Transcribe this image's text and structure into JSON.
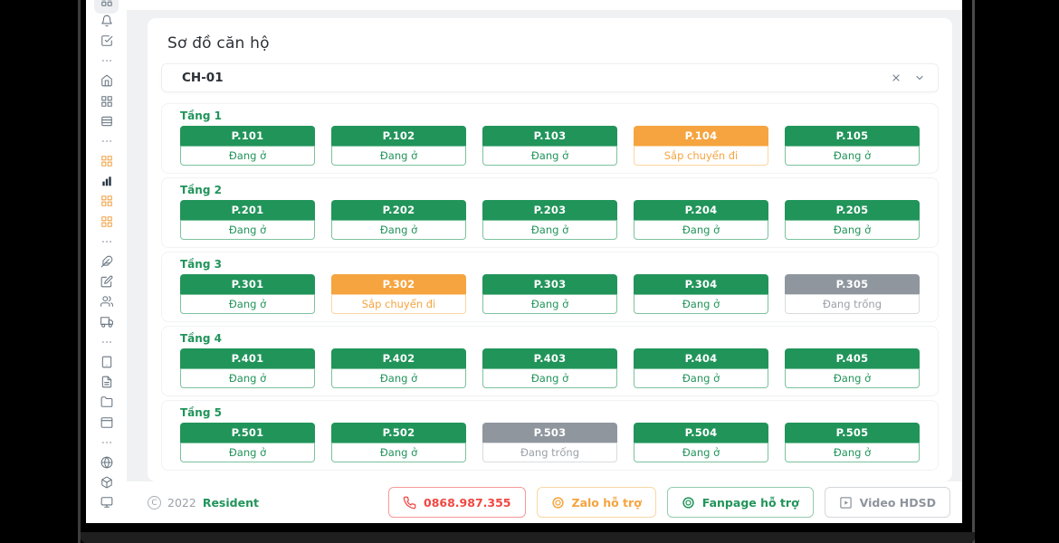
{
  "page": {
    "title": "Sơ đồ căn hộ",
    "apartment_select": {
      "value": "CH-01",
      "clear_icon": "x",
      "dropdown_icon": "chevron-down"
    },
    "floors": [
      {
        "label": "Tầng 1",
        "units": [
          {
            "name": "P.101",
            "status": "Đang ở",
            "state": "occupied"
          },
          {
            "name": "P.102",
            "status": "Đang ở",
            "state": "occupied"
          },
          {
            "name": "P.103",
            "status": "Đang ở",
            "state": "occupied"
          },
          {
            "name": "P.104",
            "status": "Sắp chuyển đi",
            "state": "leaving"
          },
          {
            "name": "P.105",
            "status": "Đang ở",
            "state": "occupied"
          }
        ]
      },
      {
        "label": "Tầng 2",
        "units": [
          {
            "name": "P.201",
            "status": "Đang ở",
            "state": "occupied"
          },
          {
            "name": "P.202",
            "status": "Đang ở",
            "state": "occupied"
          },
          {
            "name": "P.203",
            "status": "Đang ở",
            "state": "occupied"
          },
          {
            "name": "P.204",
            "status": "Đang ở",
            "state": "occupied"
          },
          {
            "name": "P.205",
            "status": "Đang ở",
            "state": "occupied"
          }
        ]
      },
      {
        "label": "Tầng 3",
        "units": [
          {
            "name": "P.301",
            "status": "Đang ở",
            "state": "occupied"
          },
          {
            "name": "P.302",
            "status": "Sắp chuyển đi",
            "state": "leaving"
          },
          {
            "name": "P.303",
            "status": "Đang ở",
            "state": "occupied"
          },
          {
            "name": "P.304",
            "status": "Đang ở",
            "state": "occupied"
          },
          {
            "name": "P.305",
            "status": "Đang trống",
            "state": "vacant"
          }
        ]
      },
      {
        "label": "Tầng 4",
        "units": [
          {
            "name": "P.401",
            "status": "Đang ở",
            "state": "occupied"
          },
          {
            "name": "P.402",
            "status": "Đang ở",
            "state": "occupied"
          },
          {
            "name": "P.403",
            "status": "Đang ở",
            "state": "occupied"
          },
          {
            "name": "P.404",
            "status": "Đang ở",
            "state": "occupied"
          },
          {
            "name": "P.405",
            "status": "Đang ở",
            "state": "occupied"
          }
        ]
      },
      {
        "label": "Tầng 5",
        "units": [
          {
            "name": "P.501",
            "status": "Đang ở",
            "state": "occupied"
          },
          {
            "name": "P.502",
            "status": "Đang ở",
            "state": "occupied"
          },
          {
            "name": "P.503",
            "status": "Đang trống",
            "state": "vacant"
          },
          {
            "name": "P.504",
            "status": "Đang ở",
            "state": "occupied"
          },
          {
            "name": "P.505",
            "status": "Đang ở",
            "state": "occupied"
          }
        ]
      }
    ]
  },
  "sidebar": {
    "icons": [
      {
        "name": "layout-grid",
        "tone": "default",
        "active": true
      },
      {
        "name": "bell",
        "tone": "default"
      },
      {
        "name": "check-square",
        "tone": "default"
      },
      {
        "name": "ellipsis",
        "tone": "muted"
      },
      {
        "name": "home",
        "tone": "default"
      },
      {
        "name": "grid",
        "tone": "default"
      },
      {
        "name": "rows",
        "tone": "default"
      },
      {
        "name": "ellipsis",
        "tone": "muted"
      },
      {
        "name": "grid",
        "tone": "orange"
      },
      {
        "name": "bar-chart",
        "tone": "dark"
      },
      {
        "name": "grid",
        "tone": "orange"
      },
      {
        "name": "grid",
        "tone": "orange"
      },
      {
        "name": "ellipsis",
        "tone": "muted"
      },
      {
        "name": "feather",
        "tone": "default"
      },
      {
        "name": "edit",
        "tone": "default"
      },
      {
        "name": "users",
        "tone": "default"
      },
      {
        "name": "truck",
        "tone": "default"
      },
      {
        "name": "ellipsis",
        "tone": "muted"
      },
      {
        "name": "tablet",
        "tone": "default"
      },
      {
        "name": "file-text",
        "tone": "default"
      },
      {
        "name": "folder",
        "tone": "default"
      },
      {
        "name": "browser-window",
        "tone": "default"
      },
      {
        "name": "ellipsis",
        "tone": "muted"
      },
      {
        "name": "globe",
        "tone": "default"
      },
      {
        "name": "box",
        "tone": "default"
      },
      {
        "name": "monitor",
        "tone": "default"
      }
    ]
  },
  "footer": {
    "copyright_symbol": "C",
    "year": "2022",
    "brand": "Resident",
    "buttons": [
      {
        "label": "0868.987.355",
        "icon": "phone",
        "tone": "red"
      },
      {
        "label": "Zalo hỗ trợ",
        "icon": "seal",
        "tone": "orange"
      },
      {
        "label": "Fanpage hỗ trợ",
        "icon": "seal",
        "tone": "green"
      },
      {
        "label": "Video HDSD",
        "icon": "play-square",
        "tone": "gray"
      }
    ]
  },
  "colors": {
    "green": "#21945A",
    "orange": "#F5A43F",
    "gray": "#8F969E",
    "red": "#F14641",
    "page_background": "#f0f1f2"
  }
}
